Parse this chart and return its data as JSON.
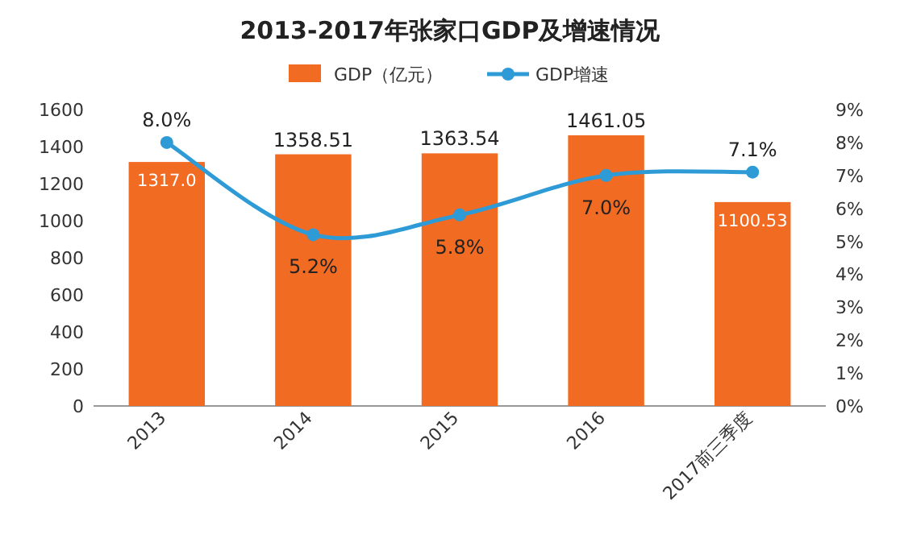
{
  "chart_data": {
    "type": "bar",
    "title": "2013-2017年张家口GDP及增速情况",
    "categories": [
      "2013",
      "2014",
      "2015",
      "2016",
      "2017前三季度"
    ],
    "series": [
      {
        "name": "GDP（亿元）",
        "color": "#f26b22",
        "values": [
          1317,
          1358.51,
          1363.54,
          1461.05,
          1100.53
        ],
        "value_labels": [
          "1317.0",
          "1358.51",
          "1363.54",
          "1461.05",
          "1100.53"
        ]
      },
      {
        "name": "GDP增速",
        "type": "line",
        "axis": "y2",
        "color": "#2e9bd6",
        "values": [
          8.0,
          5.2,
          5.8,
          7.0,
          7.1
        ],
        "value_labels": [
          "8.0%",
          "5.2%",
          "5.8%",
          "7.0%",
          "7.1%"
        ]
      }
    ],
    "ylim": [
      0,
      1600
    ],
    "yticks": [
      0,
      200,
      400,
      600,
      800,
      1000,
      1200,
      1400,
      1600
    ],
    "y2lim": [
      0,
      9
    ],
    "y2ticks": [
      {
        "value": 0,
        "label": "0%"
      },
      {
        "value": 1,
        "label": "1%"
      },
      {
        "value": 2,
        "label": "2%"
      },
      {
        "value": 3,
        "label": "3%"
      },
      {
        "value": 4,
        "label": "4%"
      },
      {
        "value": 5,
        "label": "5%"
      },
      {
        "value": 6,
        "label": "6%"
      },
      {
        "value": 7,
        "label": "7%"
      },
      {
        "value": 8,
        "label": "8%"
      },
      {
        "value": 9,
        "label": "9%"
      }
    ],
    "legend": "top",
    "marker": "circle",
    "grid": false
  }
}
